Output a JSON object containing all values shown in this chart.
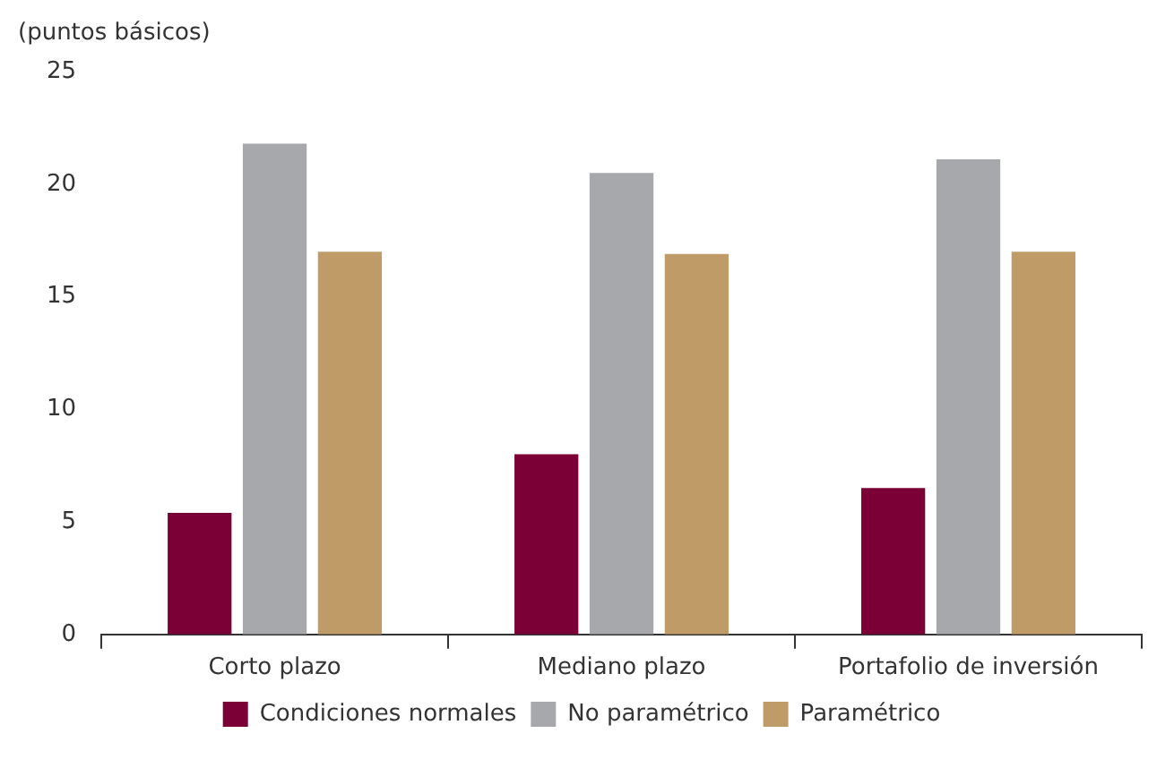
{
  "chart_data": {
    "type": "bar",
    "ylabel": "(puntos básicos)",
    "categories": [
      "Corto plazo",
      "Mediano plazo",
      "Portafolio de inversión"
    ],
    "series": [
      {
        "name": "Condiciones normales",
        "color": "#7a0036",
        "values": [
          5.4,
          8.0,
          6.5
        ]
      },
      {
        "name": "No paramétrico",
        "color": "#a7a8ac",
        "values": [
          21.8,
          20.5,
          21.1
        ]
      },
      {
        "name": "Paramétrico",
        "color": "#bf9b67",
        "values": [
          17.0,
          16.9,
          17.0
        ]
      }
    ],
    "ylim": [
      0,
      25
    ],
    "yticks": [
      0,
      5,
      10,
      15,
      20,
      25
    ],
    "grid": false,
    "legend": "bottom"
  }
}
